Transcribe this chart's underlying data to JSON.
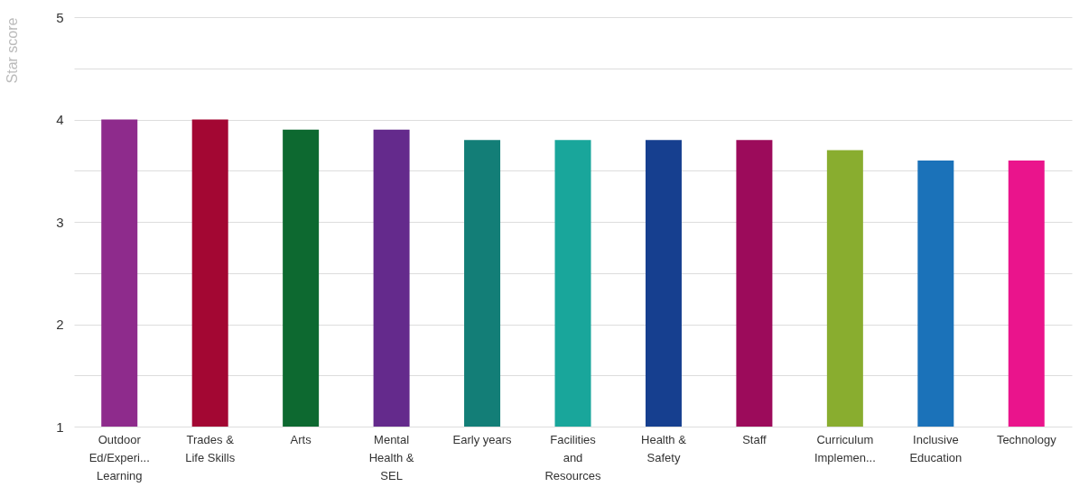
{
  "chart_data": {
    "type": "bar",
    "ylabel": "Star score",
    "categories": [
      "Outdoor Ed/Experi... Learning",
      "Trades & Life Skills",
      "Arts",
      "Mental Health & SEL",
      "Early years",
      "Facilities and Resources",
      "Health & Safety",
      "Staff",
      "Curriculum Implemen...",
      "Inclusive Education",
      "Technology"
    ],
    "values": [
      4,
      4,
      3.9,
      3.9,
      3.8,
      3.8,
      3.8,
      3.8,
      3.7,
      3.6,
      3.6
    ],
    "colors": [
      "#8e2b8c",
      "#a30733",
      "#0d6930",
      "#642a8c",
      "#137e77",
      "#19a69b",
      "#163f8f",
      "#9c0b5b",
      "#89ad2f",
      "#1b72b9",
      "#ea148c"
    ],
    "ylim": [
      1,
      5
    ],
    "yticks": [
      1,
      {
        "value": 1.5,
        "label": null
      },
      2,
      {
        "value": 2.5,
        "label": null
      },
      3,
      {
        "value": 3.5,
        "label": null
      },
      4,
      {
        "value": 4.5,
        "label": null
      },
      5
    ],
    "grid": "y"
  }
}
